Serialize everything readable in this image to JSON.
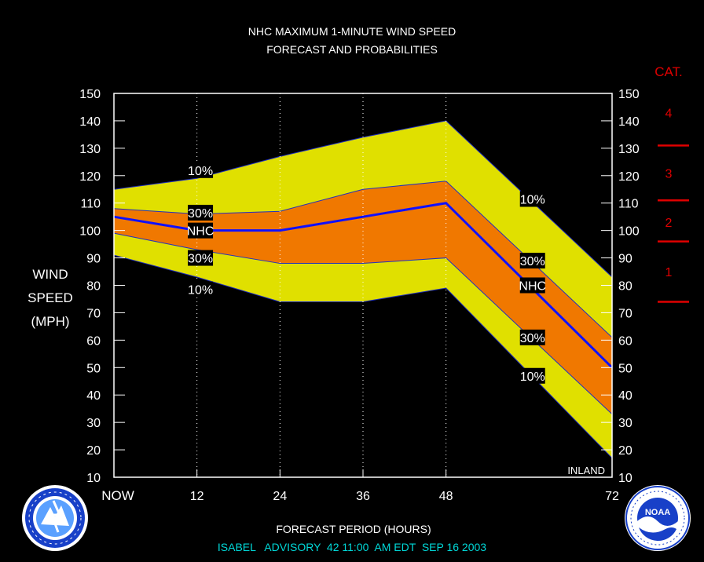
{
  "chart_data": {
    "type": "area",
    "title": "NHC MAXIMUM 1-MINUTE WIND SPEED",
    "subtitle": "FORECAST AND PROBABILITIES",
    "xlabel": "FORECAST PERIOD (HOURS)",
    "ylabel_lines": [
      "WIND",
      "SPEED",
      "(MPH)"
    ],
    "footer": "ISABEL   ADVISORY  42 11:00  AM EDT  SEP 16 2003",
    "inland_label": "INLAND",
    "cat_header": "CAT.",
    "xlim": [
      0,
      72
    ],
    "ylim": [
      10,
      150
    ],
    "x_ticks": [
      {
        "x": 0,
        "label": "NOW"
      },
      {
        "x": 12,
        "label": "12"
      },
      {
        "x": 24,
        "label": "24"
      },
      {
        "x": 36,
        "label": "36"
      },
      {
        "x": 48,
        "label": "48"
      },
      {
        "x": 72,
        "label": "72"
      }
    ],
    "y_ticks": [
      10,
      20,
      30,
      40,
      50,
      60,
      70,
      80,
      90,
      100,
      110,
      120,
      130,
      140,
      150
    ],
    "x": [
      0,
      12,
      24,
      36,
      48,
      72
    ],
    "series": [
      {
        "name": "10%",
        "role": "upper",
        "values": [
          115,
          119,
          127,
          134,
          140,
          83
        ]
      },
      {
        "name": "30%",
        "role": "upper",
        "values": [
          108,
          106,
          107,
          115,
          118,
          61
        ]
      },
      {
        "name": "NHC",
        "role": "forecast",
        "values": [
          105,
          100,
          100,
          105,
          110,
          50
        ]
      },
      {
        "name": "30%",
        "role": "lower",
        "values": [
          99,
          93,
          88,
          88,
          90,
          33
        ]
      },
      {
        "name": "10%",
        "role": "lower",
        "values": [
          91,
          83,
          74,
          74,
          79,
          17
        ]
      }
    ],
    "band_labels": [
      {
        "text": "10%",
        "x": 12.5,
        "y": 122
      },
      {
        "text": "30%",
        "x": 12.5,
        "y": 106.5
      },
      {
        "text": "NHC",
        "x": 12.5,
        "y": 100
      },
      {
        "text": "30%",
        "x": 12.5,
        "y": 90
      },
      {
        "text": "10%",
        "x": 12.5,
        "y": 78.5
      },
      {
        "text": "10%",
        "x": 60.5,
        "y": 111.5
      },
      {
        "text": "30%",
        "x": 60.5,
        "y": 89
      },
      {
        "text": "NHC",
        "x": 60.5,
        "y": 80
      },
      {
        "text": "30%",
        "x": 60.5,
        "y": 61
      },
      {
        "text": "10%",
        "x": 60.5,
        "y": 47
      }
    ],
    "categories_scale": [
      {
        "label": "4",
        "y": 143
      },
      {
        "label": "3",
        "y": 121
      },
      {
        "label": "2",
        "y": 103
      },
      {
        "label": "1",
        "y": 85
      }
    ],
    "category_thresholds": [
      131,
      111,
      96,
      74
    ],
    "colors": {
      "outer_band": "#e0e000",
      "inner_band": "#f07800",
      "forecast_line": "#1010ff",
      "category": "#e00000",
      "footer": "#00d8d8",
      "plot_border": "#ffffff"
    },
    "grid": "vertical dotted lines at 12, 24, 36, 48 h"
  },
  "logos": {
    "left": "National Weather Service",
    "right": "NOAA"
  }
}
